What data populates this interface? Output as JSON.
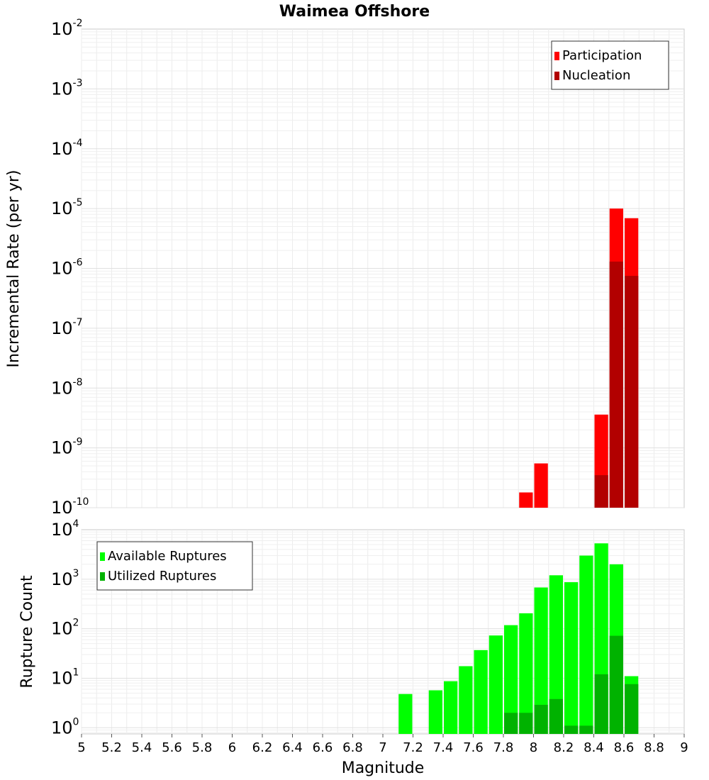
{
  "chart_data": [
    {
      "type": "bar",
      "title": "Waimea Offshore",
      "xlabel": "",
      "ylabel": "Incremental Rate (per yr)",
      "xlim": [
        5,
        9
      ],
      "ylim": [
        1e-10,
        0.01
      ],
      "yscale": "log",
      "grid": true,
      "legend_position": "top-right",
      "y_ticks": [
        {
          "base": "10",
          "exp": "-10",
          "exponent": -10
        },
        {
          "base": "10",
          "exp": "-9",
          "exponent": -9
        },
        {
          "base": "10",
          "exp": "-8",
          "exponent": -8
        },
        {
          "base": "10",
          "exp": "-7",
          "exponent": -7
        },
        {
          "base": "10",
          "exp": "-6",
          "exponent": -6
        },
        {
          "base": "10",
          "exp": "-5",
          "exponent": -5
        },
        {
          "base": "10",
          "exp": "-4",
          "exponent": -4
        },
        {
          "base": "10",
          "exp": "-3",
          "exponent": -3
        },
        {
          "base": "10",
          "exp": "-2",
          "exponent": -2
        }
      ],
      "series": [
        {
          "name": "Participation",
          "color": "#ff0000",
          "points": [
            [
              7.95,
              1.8e-10
            ],
            [
              8.05,
              5.5e-10
            ],
            [
              8.45,
              3.6e-09
            ],
            [
              8.55,
              1e-05
            ],
            [
              8.65,
              6.9e-06
            ]
          ]
        },
        {
          "name": "Nucleation",
          "color": "#b20000",
          "points": [
            [
              8.45,
              3.5e-10
            ],
            [
              8.55,
              1.3e-06
            ],
            [
              8.65,
              7.5e-07
            ]
          ]
        }
      ]
    },
    {
      "type": "bar",
      "title": "",
      "xlabel": "Magnitude",
      "ylabel": "Rupture Count",
      "xlim": [
        5,
        9
      ],
      "ylim": [
        0.75,
        10000
      ],
      "yscale": "log",
      "grid": true,
      "legend_position": "top-left",
      "x_ticks": [
        "5",
        "5.2",
        "5.4",
        "5.6",
        "5.8",
        "6",
        "6.2",
        "6.4",
        "6.6",
        "6.8",
        "7",
        "7.2",
        "7.4",
        "7.6",
        "7.8",
        "8",
        "8.2",
        "8.4",
        "8.6",
        "8.8",
        "9"
      ],
      "y_ticks": [
        {
          "base": "10",
          "exp": "0",
          "exponent": 0
        },
        {
          "base": "10",
          "exp": "1",
          "exponent": 1
        },
        {
          "base": "10",
          "exp": "2",
          "exponent": 2
        },
        {
          "base": "10",
          "exp": "3",
          "exponent": 3
        },
        {
          "base": "10",
          "exp": "4",
          "exponent": 4
        }
      ],
      "series": [
        {
          "name": "Available Ruptures",
          "color": "#00ff00",
          "points": [
            [
              7.15,
              4.8
            ],
            [
              7.35,
              5.7
            ],
            [
              7.45,
              8.7
            ],
            [
              7.55,
              17.5
            ],
            [
              7.65,
              37
            ],
            [
              7.75,
              73
            ],
            [
              7.85,
              118
            ],
            [
              7.95,
              205
            ],
            [
              8.05,
              680
            ],
            [
              8.15,
              1200
            ],
            [
              8.25,
              870
            ],
            [
              8.35,
              3000
            ],
            [
              8.45,
              5300
            ],
            [
              8.55,
              2000
            ],
            [
              8.65,
              11
            ]
          ]
        },
        {
          "name": "Utilized Ruptures",
          "color": "#00b200",
          "points": [
            [
              7.85,
              2
            ],
            [
              7.95,
              2
            ],
            [
              8.05,
              2.9
            ],
            [
              8.15,
              3.8
            ],
            [
              8.25,
              1.1
            ],
            [
              8.35,
              1.1
            ],
            [
              8.45,
              12
            ],
            [
              8.55,
              72
            ],
            [
              8.65,
              7.6
            ]
          ]
        }
      ]
    }
  ]
}
